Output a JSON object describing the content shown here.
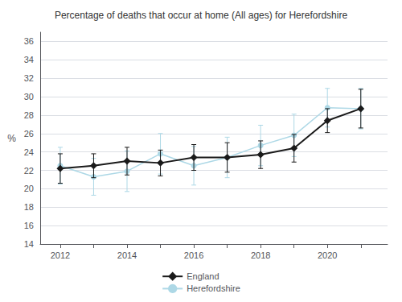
{
  "chart_data": {
    "type": "line",
    "title": "Percentage of deaths that occur at home (All ages) for Herefordshire",
    "ylabel": "%",
    "x": [
      2012,
      2013,
      2014,
      2015,
      2016,
      2017,
      2018,
      2019,
      2020,
      2021
    ],
    "series": [
      {
        "name": "England",
        "color": "#1a1a1a",
        "marker": "diamond",
        "values": [
          22.2,
          22.5,
          23.0,
          22.8,
          23.4,
          23.4,
          23.7,
          24.4,
          27.4,
          28.7
        ],
        "lower": [
          20.6,
          21.2,
          21.5,
          21.4,
          22.0,
          21.8,
          22.2,
          22.9,
          26.1,
          26.6
        ],
        "upper": [
          23.8,
          23.8,
          24.5,
          24.2,
          24.8,
          25.0,
          25.2,
          25.9,
          28.7,
          30.8
        ]
      },
      {
        "name": "Herefordshire",
        "color": "#add8e6",
        "marker": "circle",
        "values": [
          22.5,
          21.3,
          21.9,
          23.8,
          22.5,
          23.4,
          24.7,
          25.8,
          28.8,
          28.7
        ],
        "lower": [
          20.5,
          19.3,
          19.7,
          21.6,
          20.4,
          21.2,
          22.5,
          23.5,
          26.7,
          26.5
        ],
        "upper": [
          24.5,
          23.3,
          24.1,
          26.0,
          24.6,
          25.6,
          26.9,
          28.1,
          30.9,
          30.9
        ]
      }
    ],
    "xlim": [
      2011.4,
      2021.8
    ],
    "xticks": [
      2012,
      {
        "value": 2013,
        "label": null
      },
      2014,
      {
        "value": 2015,
        "label": null
      },
      2016,
      {
        "value": 2017,
        "label": null
      },
      2018,
      {
        "value": 2019,
        "label": null
      },
      2020,
      {
        "value": 2021,
        "label": null
      }
    ],
    "ylim": [
      14,
      37
    ],
    "yticks": [
      14,
      16,
      18,
      20,
      22,
      24,
      26,
      28,
      30,
      32,
      34,
      36
    ],
    "grid": true,
    "legend": "bottom"
  }
}
